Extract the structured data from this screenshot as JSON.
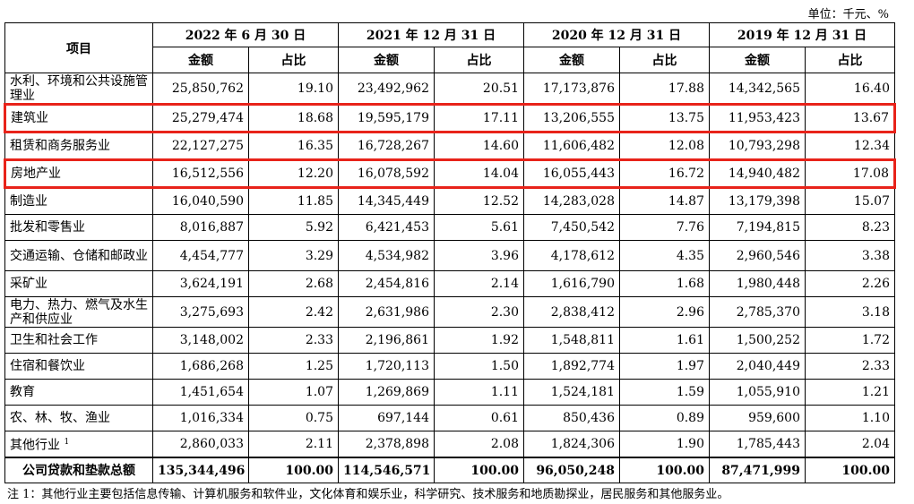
{
  "unit_label": "单位：千元、%",
  "header": {
    "item_label": "项目",
    "periods": [
      "2022 年 6 月 30 日",
      "2021 年 12 月 31 日",
      "2020 年 12 月 31 日",
      "2019 年 12 月 31 日"
    ],
    "amount_label": "金额",
    "ratio_label": "占比"
  },
  "rows": [
    {
      "name": "水利、环境和公共设施管理业",
      "lines": 2,
      "highlight": false,
      "sup": "",
      "values": [
        "25,850,762",
        "19.10",
        "23,492,962",
        "20.51",
        "17,173,876",
        "17.88",
        "14,342,565",
        "16.40"
      ]
    },
    {
      "name": "建筑业",
      "lines": 1,
      "highlight": true,
      "sup": "",
      "values": [
        "25,279,474",
        "18.68",
        "19,595,179",
        "17.11",
        "13,206,555",
        "13.75",
        "11,953,423",
        "13.67"
      ]
    },
    {
      "name": "租赁和商务服务业",
      "lines": 1,
      "highlight": false,
      "sup": "",
      "values": [
        "22,127,275",
        "16.35",
        "16,728,267",
        "14.60",
        "11,606,482",
        "12.08",
        "10,793,298",
        "12.34"
      ]
    },
    {
      "name": "房地产业",
      "lines": 1,
      "highlight": true,
      "sup": "",
      "values": [
        "16,512,556",
        "12.20",
        "16,078,592",
        "14.04",
        "16,055,443",
        "16.72",
        "14,940,482",
        "17.08"
      ]
    },
    {
      "name": "制造业",
      "lines": 1,
      "highlight": false,
      "sup": "",
      "values": [
        "16,040,590",
        "11.85",
        "14,345,449",
        "12.52",
        "14,283,028",
        "14.87",
        "13,179,398",
        "15.07"
      ]
    },
    {
      "name": "批发和零售业",
      "lines": 1,
      "highlight": false,
      "sup": "",
      "values": [
        "8,016,887",
        "5.92",
        "6,421,453",
        "5.61",
        "7,450,542",
        "7.76",
        "7,194,815",
        "8.23"
      ]
    },
    {
      "name": "交通运输、仓储和邮政业",
      "lines": 2,
      "highlight": false,
      "sup": "",
      "values": [
        "4,454,777",
        "3.29",
        "4,534,982",
        "3.96",
        "4,178,612",
        "4.35",
        "2,960,546",
        "3.38"
      ]
    },
    {
      "name": "采矿业",
      "lines": 1,
      "highlight": false,
      "sup": "",
      "values": [
        "3,624,191",
        "2.68",
        "2,454,816",
        "2.14",
        "1,616,790",
        "1.68",
        "1,980,448",
        "2.26"
      ]
    },
    {
      "name": "电力、热力、燃气及水生产和供应业",
      "lines": 2,
      "highlight": false,
      "sup": "",
      "values": [
        "3,275,693",
        "2.42",
        "2,631,986",
        "2.30",
        "2,838,412",
        "2.96",
        "2,785,370",
        "3.18"
      ]
    },
    {
      "name": "卫生和社会工作",
      "lines": 1,
      "highlight": false,
      "sup": "",
      "values": [
        "3,148,002",
        "2.33",
        "2,196,861",
        "1.92",
        "1,548,811",
        "1.61",
        "1,500,252",
        "1.72"
      ]
    },
    {
      "name": "住宿和餐饮业",
      "lines": 1,
      "highlight": false,
      "sup": "",
      "values": [
        "1,686,268",
        "1.25",
        "1,720,113",
        "1.50",
        "1,892,774",
        "1.97",
        "2,040,449",
        "2.33"
      ]
    },
    {
      "name": "教育",
      "lines": 1,
      "highlight": false,
      "sup": "",
      "values": [
        "1,451,654",
        "1.07",
        "1,269,869",
        "1.11",
        "1,524,181",
        "1.59",
        "1,055,910",
        "1.21"
      ]
    },
    {
      "name": "农、林、牧、渔业",
      "lines": 1,
      "highlight": false,
      "sup": "",
      "values": [
        "1,016,334",
        "0.75",
        "697,144",
        "0.61",
        "850,436",
        "0.89",
        "959,600",
        "1.10"
      ]
    },
    {
      "name": "其他行业",
      "lines": 1,
      "highlight": false,
      "sup": "1",
      "values": [
        "2,860,033",
        "2.11",
        "2,378,898",
        "2.08",
        "1,824,306",
        "1.90",
        "1,785,443",
        "2.04"
      ]
    }
  ],
  "total": {
    "name": "公司贷款和垫款总额",
    "values": [
      "135,344,496",
      "100.00",
      "114,546,571",
      "100.00",
      "96,050,248",
      "100.00",
      "87,471,999",
      "100.00"
    ]
  },
  "highlight_color": "#e8231a",
  "note": "注 1：其他行业主要包括信息传输、计算机服务和软件业，文化体育和娱乐业，科学研究、技术服务和地质勘探业，居民服务和其他服务业。"
}
